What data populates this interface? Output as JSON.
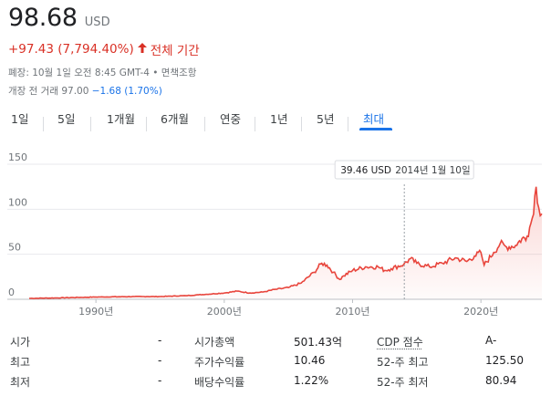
{
  "quote": {
    "price": "98.68",
    "currency": "USD",
    "change_text": "+97.43 (7,794.40%)",
    "change_arrow_icon": "arrow-up-icon",
    "period_label": "전체 기간",
    "close_info": "폐장: 10월 1일 오전 8:45 GMT-4 • 면책조항",
    "premarket_label": "개장 전 거래",
    "premarket_price": "97.00",
    "premarket_change": "−1.68 (1.70%)"
  },
  "tabs": [
    {
      "label": "1일"
    },
    {
      "label": "5일"
    },
    {
      "label": "1개월"
    },
    {
      "label": "6개월"
    },
    {
      "label": "연중"
    },
    {
      "label": "1년"
    },
    {
      "label": "5년"
    },
    {
      "label": "최대"
    }
  ],
  "active_tab_index": 7,
  "tooltip": {
    "value": "39.46 USD",
    "date": "2014년 1월 10일"
  },
  "colors": {
    "line": "#e8453c",
    "accent": "#1a73e8",
    "negative": "#d93025"
  },
  "chart_data": {
    "type": "area",
    "x_ticks": [
      "1990년",
      "2000년",
      "2010년",
      "2020년"
    ],
    "y_ticks": [
      "150",
      "100",
      "50",
      "0"
    ],
    "ylim": [
      0,
      150
    ],
    "xlim": [
      1984.8,
      2024.75
    ],
    "grid": true,
    "series": [
      {
        "x": [
          1984.8,
          1987,
          1990,
          1993,
          1995,
          1997,
          1998,
          2000,
          2001,
          2002,
          2003,
          2004,
          2005,
          2006,
          2007,
          2007.6,
          2008,
          2008.5,
          2009,
          2009.3,
          2010,
          2011,
          2012,
          2012.5,
          2013,
          2014,
          2014.5,
          2015,
          2016,
          2017,
          2018,
          2018.9,
          2019.5,
          2020,
          2020.25,
          2021,
          2021.5,
          2022,
          2022.8,
          2023,
          2023.6,
          2024,
          2024.3,
          2024.5,
          2024.75
        ],
        "y": [
          1,
          1.5,
          2.5,
          3,
          3,
          4,
          5,
          7,
          9,
          7,
          8,
          11,
          13,
          18,
          30,
          40,
          38,
          30,
          22,
          26,
          32,
          36,
          36,
          32,
          34,
          39,
          45,
          40,
          36,
          40,
          46,
          42,
          48,
          52,
          38,
          52,
          62,
          58,
          60,
          65,
          70,
          90,
          125,
          102,
          95
        ]
      }
    ]
  },
  "stats": [
    {
      "l1": "시가",
      "v1": "-",
      "l2": "시가총액",
      "v2": "501.43억",
      "l3": "CDP 점수",
      "v3": "A-"
    },
    {
      "l1": "최고",
      "v1": "-",
      "l2": "주가수익률",
      "v2": "10.46",
      "l3": "52-주 최고",
      "v3": "125.50"
    },
    {
      "l1": "최저",
      "v1": "-",
      "l2": "배당수익률",
      "v2": "1.22%",
      "l3": "52-주 최저",
      "v3": "80.94"
    }
  ]
}
